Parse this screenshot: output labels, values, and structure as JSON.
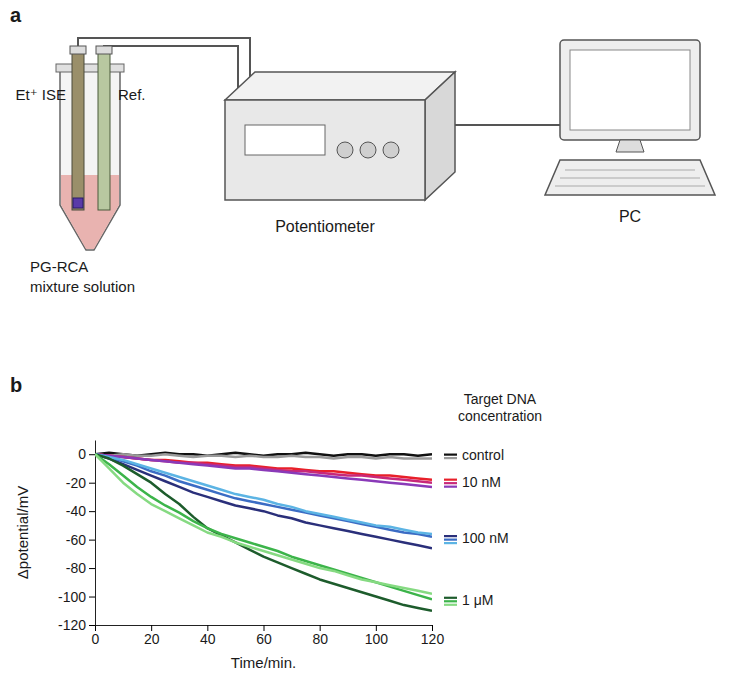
{
  "figure": {
    "panel_labels": [
      "a",
      "b"
    ]
  },
  "diagram": {
    "electrode": "Et⁺ ISE",
    "reference": "Ref.",
    "instrument": "Potentiometer",
    "computer": "PC",
    "sample": [
      "PG-RCA",
      "mixture solution"
    ]
  },
  "chart_data": {
    "type": "line",
    "x_label": "Time/min.",
    "y_label": "Δpotential/mV",
    "legend": "right",
    "legend_title": "Target DNA concentration",
    "grid": false,
    "x": [
      0,
      5,
      10,
      15,
      20,
      25,
      30,
      35,
      40,
      45,
      50,
      55,
      60,
      65,
      70,
      75,
      80,
      85,
      90,
      95,
      100,
      105,
      110,
      115,
      120
    ],
    "xlim": [
      0,
      120
    ],
    "xticks": [
      0,
      20,
      40,
      60,
      80,
      100,
      120
    ],
    "ylim": [
      -120,
      10
    ],
    "yticks": [
      -120,
      -100,
      -80,
      -60,
      -40,
      -20,
      0
    ],
    "series": [
      {
        "name": "control",
        "color": "#111111",
        "values": [
          0,
          1,
          0,
          -1,
          0,
          1,
          0,
          0,
          -1,
          0,
          1,
          0,
          -1,
          0,
          0,
          1,
          0,
          -1,
          0,
          0,
          -1,
          0,
          0,
          -1,
          0
        ]
      },
      {
        "name": "control",
        "color": "#9a9a9a",
        "values": [
          0,
          -1,
          0,
          -1,
          -1,
          0,
          -1,
          -2,
          -1,
          -1,
          -2,
          -1,
          -2,
          -2,
          -1,
          -2,
          -2,
          -3,
          -2,
          -2,
          -3,
          -2,
          -3,
          -3,
          -3
        ]
      },
      {
        "name": "10 nM",
        "color": "#e8202a",
        "values": [
          0,
          -1,
          -2,
          -3,
          -4,
          -4,
          -5,
          -6,
          -6,
          -7,
          -8,
          -8,
          -9,
          -10,
          -10,
          -11,
          -12,
          -12,
          -13,
          -14,
          -15,
          -15,
          -16,
          -17,
          -18
        ]
      },
      {
        "name": "10 nM",
        "color": "#c8287a",
        "values": [
          0,
          -1,
          -2,
          -3,
          -4,
          -5,
          -6,
          -6,
          -7,
          -8,
          -9,
          -9,
          -10,
          -11,
          -12,
          -12,
          -13,
          -14,
          -15,
          -15,
          -16,
          -17,
          -18,
          -19,
          -20
        ]
      },
      {
        "name": "10 nM",
        "color": "#8a3ab8",
        "values": [
          0,
          -1,
          -2,
          -3,
          -4,
          -5,
          -6,
          -7,
          -8,
          -9,
          -10,
          -10,
          -11,
          -12,
          -13,
          -14,
          -15,
          -16,
          -17,
          -18,
          -19,
          -20,
          -21,
          -22,
          -23
        ]
      },
      {
        "name": "100 nM",
        "color": "#2a2f7a",
        "values": [
          0,
          -3,
          -7,
          -11,
          -15,
          -19,
          -23,
          -27,
          -30,
          -33,
          -36,
          -38,
          -40,
          -43,
          -45,
          -48,
          -50,
          -52,
          -54,
          -56,
          -58,
          -60,
          -62,
          -64,
          -66
        ]
      },
      {
        "name": "100 nM",
        "color": "#3b6cc4",
        "values": [
          0,
          -2,
          -5,
          -8,
          -12,
          -15,
          -19,
          -22,
          -25,
          -28,
          -31,
          -33,
          -35,
          -37,
          -39,
          -41,
          -43,
          -45,
          -47,
          -49,
          -51,
          -53,
          -55,
          -56,
          -58
        ]
      },
      {
        "name": "100 nM",
        "color": "#5cb4e4",
        "values": [
          0,
          -2,
          -4,
          -7,
          -10,
          -13,
          -16,
          -19,
          -22,
          -25,
          -28,
          -30,
          -32,
          -35,
          -37,
          -40,
          -42,
          -44,
          -46,
          -48,
          -50,
          -51,
          -53,
          -55,
          -56
        ]
      },
      {
        "name": "1 μM",
        "color": "#1d5c2c",
        "values": [
          0,
          -3,
          -8,
          -14,
          -20,
          -28,
          -35,
          -44,
          -52,
          -57,
          -62,
          -67,
          -72,
          -76,
          -80,
          -84,
          -88,
          -91,
          -94,
          -97,
          -100,
          -103,
          -106,
          -108,
          -110
        ]
      },
      {
        "name": "1 μM",
        "color": "#3cb44a",
        "values": [
          0,
          -7,
          -15,
          -23,
          -30,
          -36,
          -41,
          -47,
          -52,
          -56,
          -59,
          -62,
          -65,
          -68,
          -72,
          -75,
          -78,
          -81,
          -84,
          -87,
          -90,
          -93,
          -96,
          -99,
          -102
        ]
      },
      {
        "name": "1 μM",
        "color": "#86da82",
        "values": [
          0,
          -10,
          -20,
          -28,
          -35,
          -40,
          -45,
          -50,
          -55,
          -58,
          -62,
          -65,
          -68,
          -71,
          -74,
          -77,
          -80,
          -82,
          -85,
          -88,
          -90,
          -92,
          -94,
          -96,
          -98
        ]
      }
    ]
  }
}
